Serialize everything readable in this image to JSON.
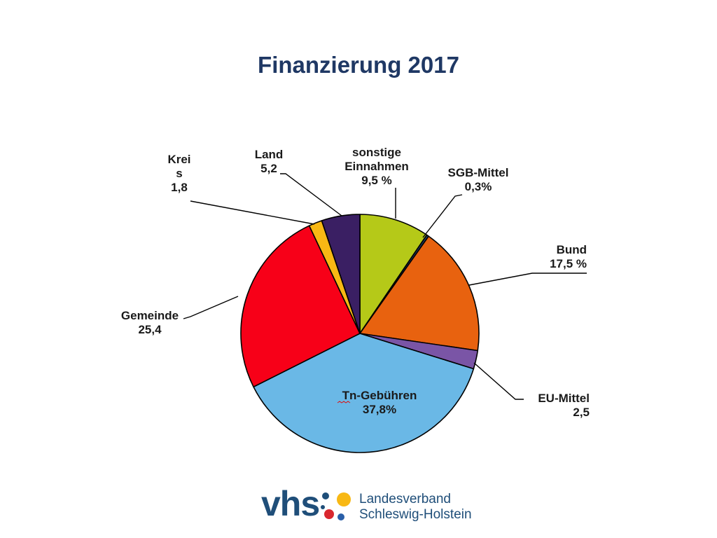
{
  "chart_data": {
    "type": "pie",
    "title": "Finanzierung 2017",
    "start_angle_deg": 0,
    "direction": "clockwise",
    "slices": [
      {
        "label_lines": [
          "sonstige",
          "Einnahmen",
          "9,5 %"
        ],
        "value": 9.5,
        "color": "#b5c918"
      },
      {
        "label_lines": [
          "SGB-Mittel",
          "0,3%"
        ],
        "value": 0.3,
        "color": "#1f3864"
      },
      {
        "label_lines": [
          "Bund",
          "17,5 %"
        ],
        "value": 17.5,
        "color": "#e8620f"
      },
      {
        "label_lines": [
          "EU-Mittel",
          "2,5"
        ],
        "value": 2.5,
        "color": "#7a55a6"
      },
      {
        "label_lines": [
          "Tn-Gebühren",
          "37,8%"
        ],
        "value": 37.8,
        "color": "#6ab8e6"
      },
      {
        "label_lines": [
          "Gemeinde",
          "25,4"
        ],
        "value": 25.4,
        "color": "#f70018"
      },
      {
        "label_lines": [
          "Krei",
          "s",
          "1,8"
        ],
        "value": 1.8,
        "color": "#f8b814"
      },
      {
        "label_lines": [
          "Land",
          "5,2"
        ],
        "value": 5.2,
        "color": "#3a1f63"
      }
    ]
  },
  "footer": {
    "logo_text": "vhs",
    "line1": "Landesverband",
    "line2": "Schleswig-Holstein",
    "colors": {
      "text": "#1f4e79",
      "dots": [
        "#1f4e79",
        "#f8b814",
        "#d9272e",
        "#2a5fa8"
      ]
    }
  }
}
